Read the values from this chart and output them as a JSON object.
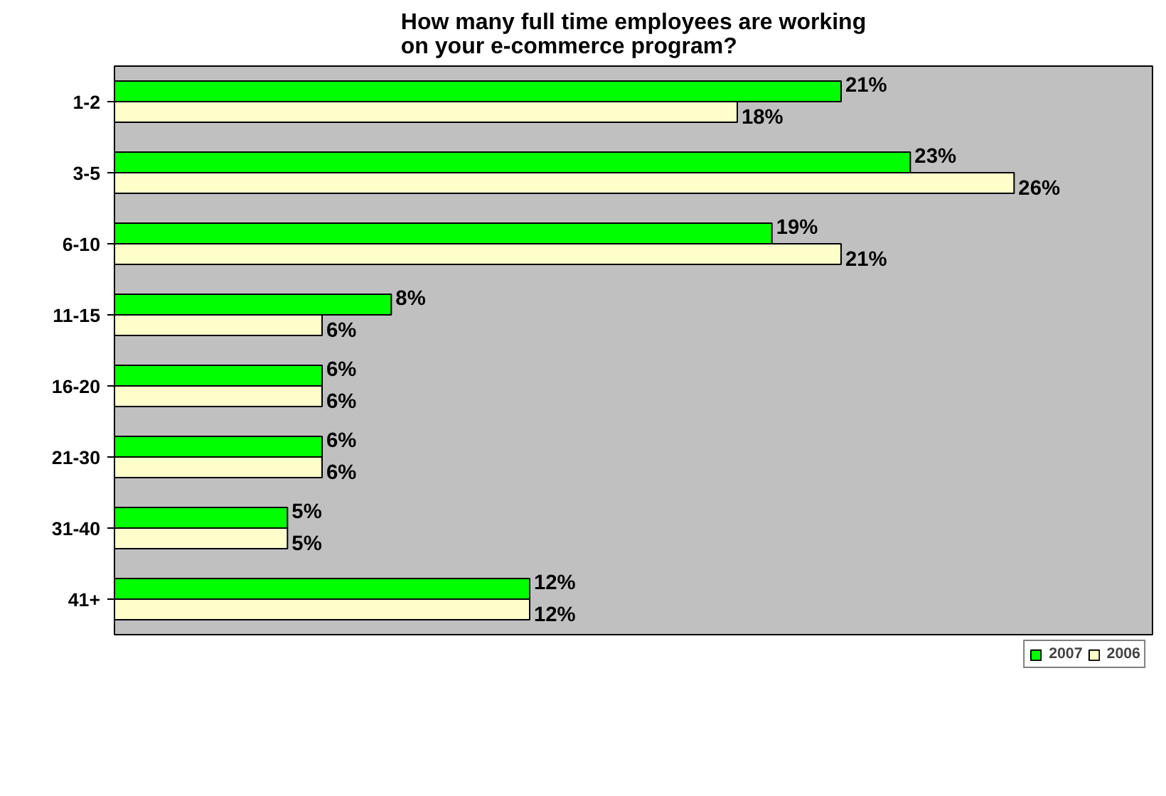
{
  "chart_data": {
    "type": "bar",
    "orientation": "horizontal",
    "title": "How many full time employees are working\non your e-commerce program?",
    "categories": [
      "1-2",
      "3-5",
      "6-10",
      "11-15",
      "16-20",
      "21-30",
      "31-40",
      "41+"
    ],
    "series": [
      {
        "name": "2007",
        "color": "#00ff00",
        "values": [
          21,
          23,
          19,
          8,
          6,
          6,
          5,
          12
        ],
        "value_labels": [
          "21%",
          "23%",
          "19%",
          "8%",
          "6%",
          "6%",
          "5%",
          "12%"
        ]
      },
      {
        "name": "2006",
        "color": "#ffffcc",
        "values": [
          18,
          26,
          21,
          6,
          6,
          6,
          5,
          12
        ],
        "value_labels": [
          "18%",
          "26%",
          "21%",
          "6%",
          "6%",
          "6%",
          "5%",
          "12%"
        ]
      }
    ],
    "xlim": [
      0,
      30
    ],
    "tick_labels": "y",
    "grid": false,
    "legend": "bottom"
  }
}
